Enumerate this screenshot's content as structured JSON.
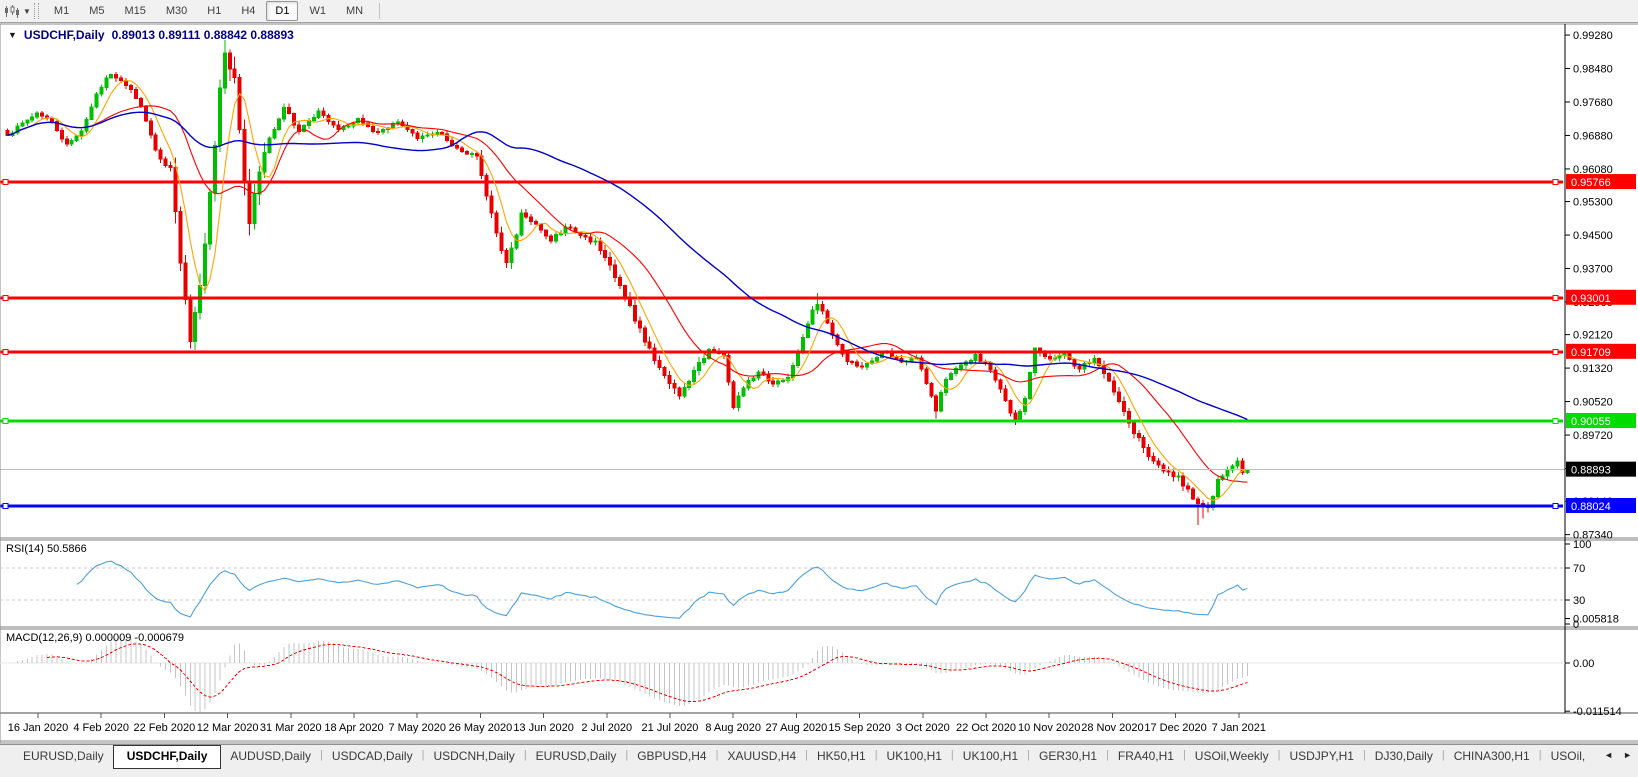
{
  "toolbar": {
    "icon": "chart-style-icon",
    "timeframes": [
      {
        "label": "M1",
        "active": false
      },
      {
        "label": "M5",
        "active": false
      },
      {
        "label": "M15",
        "active": false
      },
      {
        "label": "M30",
        "active": false
      },
      {
        "label": "H1",
        "active": false
      },
      {
        "label": "H4",
        "active": false
      },
      {
        "label": "D1",
        "active": true
      },
      {
        "label": "W1",
        "active": false
      },
      {
        "label": "MN",
        "active": false
      }
    ]
  },
  "chart": {
    "collapse_arrow": "▼",
    "title_symbol": "USDCHF,Daily",
    "ohlc_text": "0.89013 0.89111 0.88842 0.88893",
    "open": "0.89013",
    "high": "0.89111",
    "low": "0.88842",
    "close": "0.88893"
  },
  "chart_data": {
    "type": "candlestick",
    "symbol": "USDCHF",
    "timeframe": "Daily",
    "candles_count": 252,
    "bull_color": "#00BE00",
    "bear_color": "#E80000",
    "price_axis_ticks": [
      "0.99280",
      "0.98480",
      "0.97680",
      "0.96880",
      "0.96080",
      "0.95300",
      "0.94500",
      "0.93700",
      "0.92900",
      "0.92120",
      "0.91320",
      "0.90520",
      "0.89720",
      "0.88920",
      "0.88140",
      "0.87340"
    ],
    "x_axis_dates": [
      "16 Jan 2020",
      "4 Feb 2020",
      "22 Feb 2020",
      "12 Mar 2020",
      "31 Mar 2020",
      "18 Apr 2020",
      "7 May 2020",
      "26 May 2020",
      "13 Jun 2020",
      "2 Jul 2020",
      "21 Jul 2020",
      "8 Aug 2020",
      "27 Aug 2020",
      "15 Sep 2020",
      "3 Oct 2020",
      "22 Oct 2020",
      "10 Nov 2020",
      "28 Nov 2020",
      "17 Dec 2020",
      "7 Jan 2021"
    ],
    "levels": [
      {
        "price": 0.95766,
        "label": "0.95766",
        "color": "#FF0000",
        "kind": "resistance"
      },
      {
        "price": 0.93001,
        "label": "0.93001",
        "color": "#FF0000",
        "kind": "resistance"
      },
      {
        "price": 0.91709,
        "label": "0.91709",
        "color": "#FF0000",
        "kind": "resistance"
      },
      {
        "price": 0.90055,
        "label": "0.90055",
        "color": "#00DC00",
        "kind": "support"
      },
      {
        "price": 0.88024,
        "label": "0.88024",
        "color": "#0000FF",
        "kind": "support"
      }
    ],
    "current_price": {
      "value": 0.88893,
      "label": "0.88893",
      "line_color": "#BDBDBD",
      "badge_color": "#000000"
    },
    "moving_averages": [
      {
        "period": 6,
        "color": "#FFA500"
      },
      {
        "period": 18,
        "color": "#FF0000"
      },
      {
        "period": 55,
        "color": "#0000C8"
      }
    ],
    "close_anchors": [
      [
        0,
        0.969
      ],
      [
        3,
        0.9716
      ],
      [
        6,
        0.9744
      ],
      [
        9,
        0.9722
      ],
      [
        12,
        0.9666
      ],
      [
        15,
        0.9702
      ],
      [
        18,
        0.9788
      ],
      [
        21,
        0.9838
      ],
      [
        24,
        0.9812
      ],
      [
        27,
        0.9756
      ],
      [
        30,
        0.9652
      ],
      [
        33,
        0.96
      ],
      [
        35,
        0.9392
      ],
      [
        37,
        0.9192
      ],
      [
        38,
        0.9252
      ],
      [
        39,
        0.9322
      ],
      [
        41,
        0.9552
      ],
      [
        43,
        0.9798
      ],
      [
        44,
        0.9892
      ],
      [
        46,
        0.9818
      ],
      [
        47,
        0.97
      ],
      [
        49,
        0.9482
      ],
      [
        51,
        0.9598
      ],
      [
        53,
        0.9678
      ],
      [
        56,
        0.9754
      ],
      [
        59,
        0.97
      ],
      [
        63,
        0.9744
      ],
      [
        67,
        0.97
      ],
      [
        71,
        0.973
      ],
      [
        75,
        0.9692
      ],
      [
        79,
        0.972
      ],
      [
        83,
        0.9682
      ],
      [
        87,
        0.97
      ],
      [
        91,
        0.9656
      ],
      [
        95,
        0.9638
      ],
      [
        99,
        0.9452
      ],
      [
        101,
        0.9378
      ],
      [
        104,
        0.9498
      ],
      [
        107,
        0.9478
      ],
      [
        110,
        0.9436
      ],
      [
        113,
        0.9468
      ],
      [
        116,
        0.9454
      ],
      [
        119,
        0.943
      ],
      [
        122,
        0.938
      ],
      [
        125,
        0.93
      ],
      [
        128,
        0.9226
      ],
      [
        131,
        0.9152
      ],
      [
        134,
        0.91
      ],
      [
        136,
        0.9062
      ],
      [
        139,
        0.912
      ],
      [
        142,
        0.9178
      ],
      [
        145,
        0.9158
      ],
      [
        147,
        0.9042
      ],
      [
        149,
        0.9086
      ],
      [
        152,
        0.912
      ],
      [
        155,
        0.9092
      ],
      [
        158,
        0.9112
      ],
      [
        161,
        0.92
      ],
      [
        163,
        0.9268
      ],
      [
        164,
        0.9288
      ],
      [
        166,
        0.924
      ],
      [
        169,
        0.9162
      ],
      [
        172,
        0.9132
      ],
      [
        175,
        0.915
      ],
      [
        178,
        0.9172
      ],
      [
        181,
        0.9142
      ],
      [
        184,
        0.916
      ],
      [
        187,
        0.9062
      ],
      [
        188,
        0.9032
      ],
      [
        190,
        0.911
      ],
      [
        193,
        0.9142
      ],
      [
        196,
        0.916
      ],
      [
        199,
        0.913
      ],
      [
        202,
        0.9052
      ],
      [
        204,
        0.9002
      ],
      [
        206,
        0.9062
      ],
      [
        208,
        0.9178
      ],
      [
        211,
        0.9152
      ],
      [
        214,
        0.9162
      ],
      [
        217,
        0.9132
      ],
      [
        220,
        0.915
      ],
      [
        222,
        0.912
      ],
      [
        225,
        0.9052
      ],
      [
        228,
        0.8982
      ],
      [
        231,
        0.8922
      ],
      [
        234,
        0.8892
      ],
      [
        237,
        0.8872
      ],
      [
        239,
        0.8842
      ],
      [
        241,
        0.8802
      ],
      [
        243,
        0.8792
      ],
      [
        245,
        0.8862
      ],
      [
        247,
        0.8892
      ],
      [
        249,
        0.8906
      ],
      [
        250,
        0.8886
      ],
      [
        251,
        0.88893
      ]
    ],
    "spikes": [
      {
        "i": 37,
        "low": 0.9183
      },
      {
        "i": 44,
        "high": 0.9901
      },
      {
        "i": 147,
        "low": 0.9038
      },
      {
        "i": 164,
        "high": 0.9312
      },
      {
        "i": 188,
        "low": 0.9012
      },
      {
        "i": 204,
        "low": 0.8996
      },
      {
        "i": 241,
        "low": 0.8757
      },
      {
        "i": 242,
        "low": 0.8772
      }
    ]
  },
  "rsi": {
    "label": "RSI(14) 50.5866",
    "period": 14,
    "value": "50.5866",
    "scale": [
      {
        "label": "100",
        "v": 100
      },
      {
        "label": "70",
        "v": 70
      },
      {
        "label": "30",
        "v": 30
      },
      {
        "label": "0",
        "v": 0
      }
    ],
    "dashed_levels": [
      70,
      30
    ],
    "line_color": "#4DA0DC",
    "level_color": "#C8C8C8"
  },
  "macd": {
    "label": "MACD(12,26,9) 0.000009 -0.000679",
    "fast": 12,
    "slow": 26,
    "signal": 9,
    "scale": [
      {
        "label": "0.005818",
        "v": 0.005818
      },
      {
        "label": "0.00",
        "v": 0
      },
      {
        "label": "-0.011514",
        "v": -0.011514
      }
    ],
    "histogram_color": "#C6C6C6",
    "signal_color": "#FF0000"
  },
  "tabs": {
    "items": [
      {
        "label": "EURUSD,Daily",
        "active": false
      },
      {
        "label": "USDCHF,Daily",
        "active": true
      },
      {
        "label": "AUDUSD,Daily",
        "active": false
      },
      {
        "label": "USDCAD,Daily",
        "active": false
      },
      {
        "label": "USDCNH,Daily",
        "active": false
      },
      {
        "label": "EURUSD,Daily",
        "active": false
      },
      {
        "label": "GBPUSD,H4",
        "active": false
      },
      {
        "label": "XAUUSD,H4",
        "active": false
      },
      {
        "label": "HK50,H1",
        "active": false
      },
      {
        "label": "UK100,H1",
        "active": false
      },
      {
        "label": "UK100,H1",
        "active": false
      },
      {
        "label": "GER30,H1",
        "active": false
      },
      {
        "label": "FRA40,H1",
        "active": false
      },
      {
        "label": "USOil,Weekly",
        "active": false
      },
      {
        "label": "USDJPY,H1",
        "active": false
      },
      {
        "label": "DJ30,Daily",
        "active": false
      },
      {
        "label": "CHINA300,H1",
        "active": false
      },
      {
        "label": "USOil,",
        "active": false
      }
    ],
    "scroll_left": "◄",
    "scroll_right": "►"
  }
}
